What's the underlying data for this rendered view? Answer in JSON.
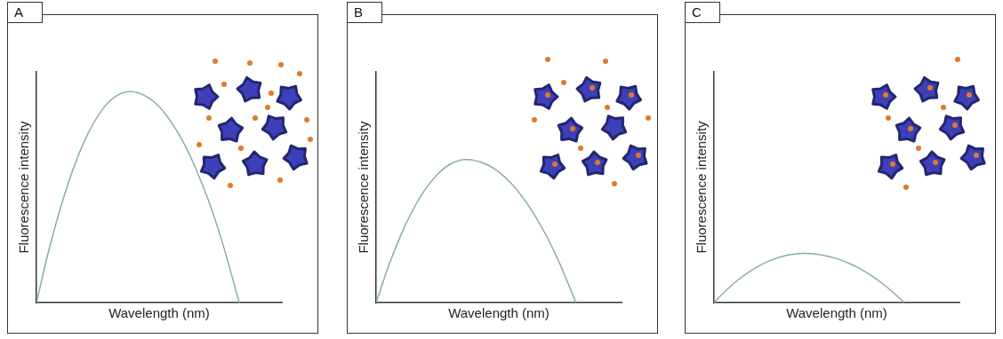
{
  "chart_data": [
    {
      "type": "line",
      "title": "A",
      "x_label": "Wavelength (nm)",
      "y_label": "Fluorescence intensity",
      "x": [
        0,
        5,
        10,
        15,
        20,
        25,
        30,
        38,
        45,
        50,
        55,
        60,
        65,
        70,
        75,
        80,
        82.6
      ],
      "values": [
        0,
        22.5,
        41.8,
        58,
        71,
        80.8,
        87.5,
        91.5,
        89.2,
        84.9,
        78.1,
        69.2,
        57.9,
        44.5,
        28.7,
        10.2,
        0
      ],
      "color": "#86b0a0",
      "xlim": [
        0,
        100
      ],
      "ylim": [
        0,
        100
      ],
      "tick_labels": false,
      "grid": false
    },
    {
      "type": "line",
      "title": "B",
      "x_label": "Wavelength (nm)",
      "y_label": "Fluorescence intensity",
      "x": [
        0,
        5,
        10,
        15,
        20,
        25,
        30,
        36.8,
        45,
        50,
        55,
        60,
        65,
        70,
        75,
        81.4
      ],
      "values": [
        0,
        15.7,
        29.1,
        40.2,
        49.1,
        55.6,
        59.9,
        62,
        59.9,
        56.6,
        51.7,
        45.2,
        37.2,
        27.7,
        16.5,
        0
      ],
      "color": "#86b0a0",
      "xlim": [
        0,
        100
      ],
      "ylim": [
        0,
        100
      ],
      "tick_labels": false,
      "grid": false
    },
    {
      "type": "line",
      "title": "C",
      "x_label": "Wavelength (nm)",
      "y_label": "Fluorescence intensity",
      "x": [
        0,
        5,
        10,
        15,
        20,
        25,
        30,
        36.8,
        45,
        50,
        55,
        60,
        65,
        70,
        75,
        77.5
      ],
      "values": [
        0,
        5.4,
        10,
        13.8,
        16.9,
        19.1,
        20.6,
        21.3,
        20.4,
        19.1,
        17,
        14.4,
        11.1,
        7.1,
        2.5,
        0
      ],
      "color": "#86b0a0",
      "xlim": [
        0,
        100
      ],
      "ylim": [
        0,
        100
      ],
      "tick_labels": false,
      "grid": false
    }
  ]
}
